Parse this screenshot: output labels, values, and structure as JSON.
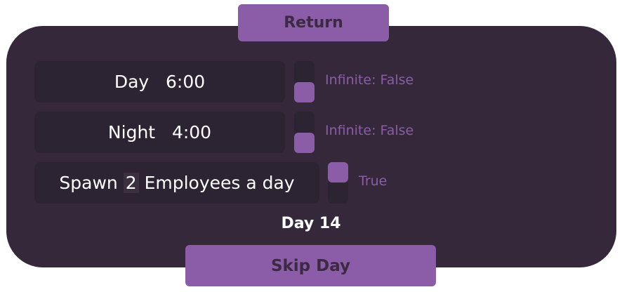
{
  "return_label": "Return",
  "skip_label": "Skip Day",
  "day_counter": "Day 14",
  "rows": [
    {
      "label": "Day",
      "value": "6:00",
      "toggle_label": "Infinite: False",
      "toggle_on": false
    },
    {
      "label": "Night",
      "value": "4:00",
      "toggle_label": "Infinite: False",
      "toggle_on": false
    }
  ],
  "spawn": {
    "prefix": "Spawn",
    "count": "2",
    "suffix": "Employees a day",
    "toggle_label": "True",
    "toggle_on": true
  },
  "colors": {
    "accent": "#8b5ca8",
    "panel": "#35283a",
    "field": "#2c2433"
  }
}
